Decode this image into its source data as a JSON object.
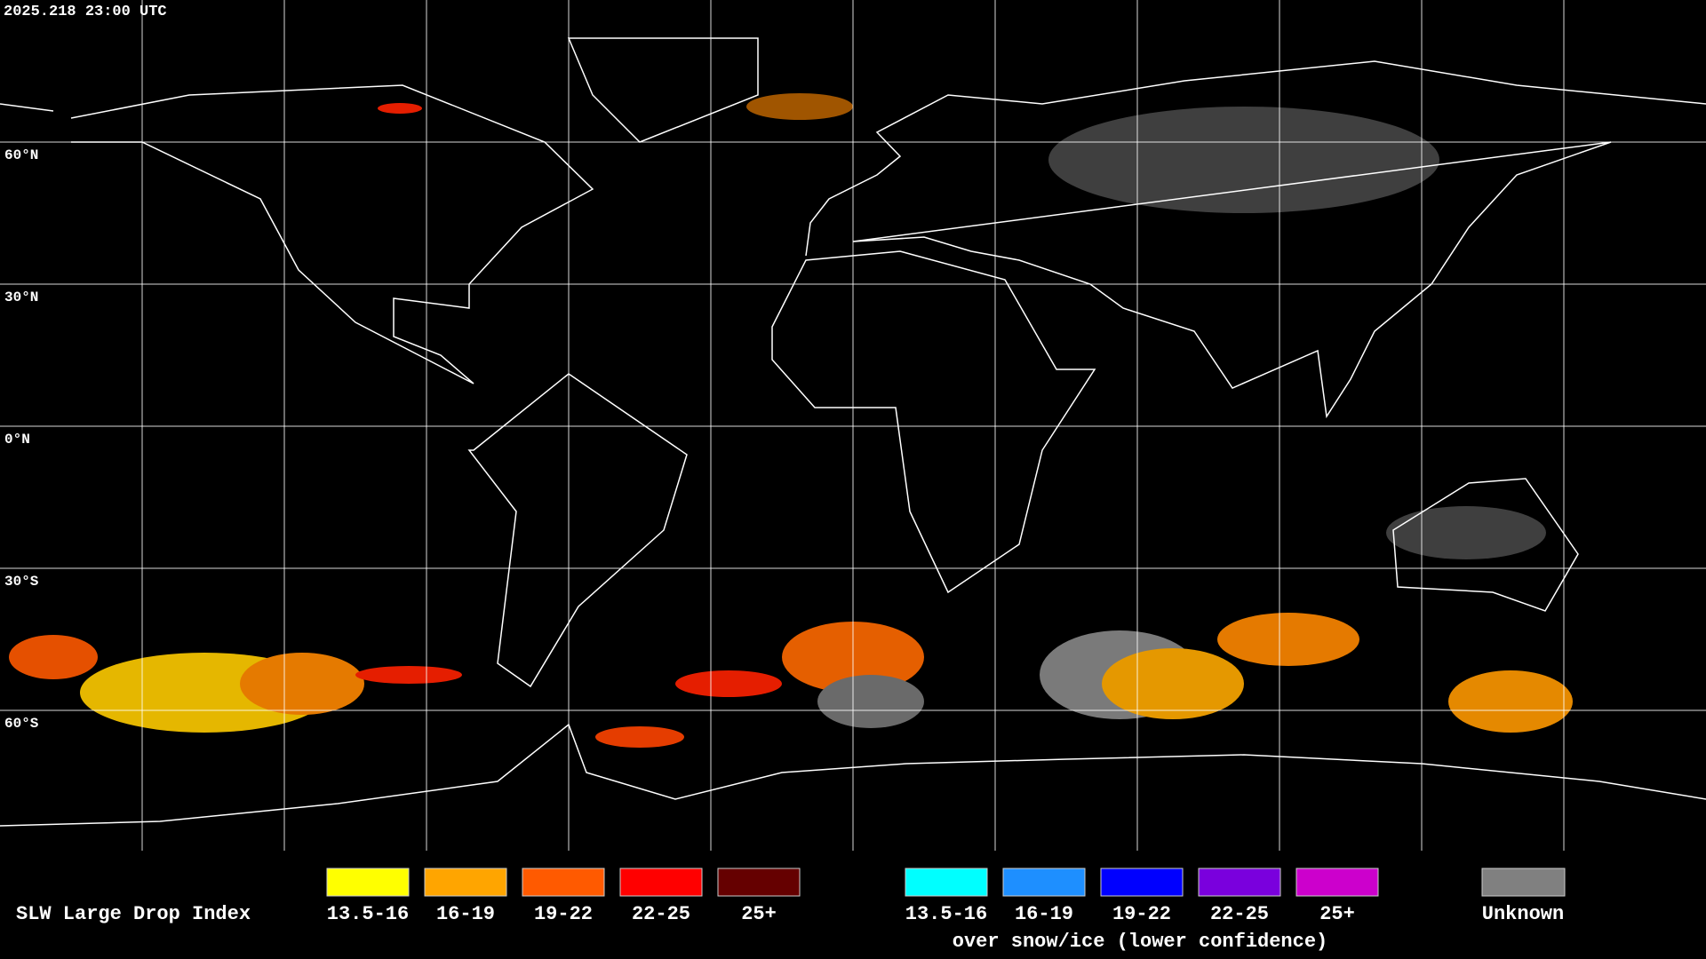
{
  "header": {
    "timestamp": "2025.218 23:00 UTC"
  },
  "map": {
    "lat_labels": [
      "60°N",
      "30°N",
      "0°N",
      "30°S",
      "60°S"
    ]
  },
  "legend": {
    "title": "SLW Large Drop Index",
    "items": [
      {
        "label": "13.5-16",
        "color": "#ffff00"
      },
      {
        "label": "16-19",
        "color": "#ffa500"
      },
      {
        "label": "19-22",
        "color": "#ff5a00"
      },
      {
        "label": "22-25",
        "color": "#ff0000"
      },
      {
        "label": "25+",
        "color": "#650000"
      }
    ],
    "snow_items": [
      {
        "label": "13.5-16",
        "color": "#00ffff"
      },
      {
        "label": "16-19",
        "color": "#1e8fff"
      },
      {
        "label": "19-22",
        "color": "#0000ff"
      },
      {
        "label": "22-25",
        "color": "#7a00dd"
      },
      {
        "label": "25+",
        "color": "#cc00cc"
      }
    ],
    "snow_caption": "over snow/ice (lower confidence)",
    "unknown": {
      "label": "Unknown",
      "color": "#808080"
    }
  }
}
